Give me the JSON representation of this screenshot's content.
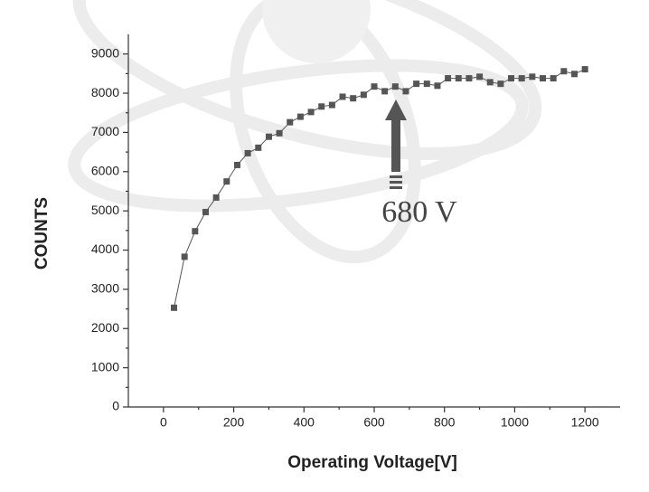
{
  "chart_data": {
    "type": "line",
    "xlabel": "Operating Voltage[V]",
    "ylabel": "COUNTS",
    "annotation": "680 V",
    "x": [
      30,
      60,
      90,
      120,
      150,
      180,
      210,
      240,
      270,
      300,
      330,
      360,
      390,
      420,
      450,
      480,
      510,
      540,
      570,
      600,
      630,
      660,
      690,
      720,
      750,
      780,
      810,
      840,
      870,
      900,
      930,
      960,
      990,
      1020,
      1050,
      1080,
      1110,
      1140,
      1170,
      1200
    ],
    "series": [
      {
        "color": "#555555",
        "values": [
          2530,
          3830,
          4480,
          4970,
          5340,
          5750,
          6170,
          6470,
          6610,
          6890,
          6980,
          7260,
          7400,
          7520,
          7660,
          7700,
          7910,
          7870,
          7960,
          8170,
          8050,
          8170,
          8050,
          8240,
          8240,
          8190,
          8380,
          8380,
          8380,
          8420,
          8280,
          8240,
          8380,
          8380,
          8420,
          8380,
          8380,
          8560,
          8490,
          8610
        ]
      }
    ],
    "xlim": [
      -100,
      1300
    ],
    "xticks": [
      0,
      200,
      400,
      600,
      800,
      1000,
      1200
    ],
    "ylim": [
      0,
      9500
    ],
    "yticks": [
      0,
      1000,
      2000,
      3000,
      4000,
      5000,
      6000,
      7000,
      8000,
      9000
    ]
  }
}
